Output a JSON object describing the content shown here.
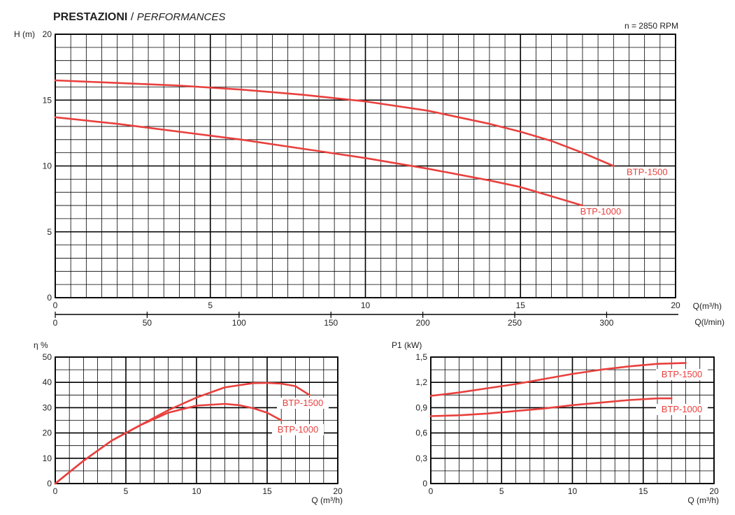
{
  "header": {
    "title_bold": "PRESTAZIONI",
    "title_separator": " / ",
    "title_italic": "PERFORMANCES",
    "speed": "n = 2850 RPM"
  },
  "colors": {
    "curve": "#e8403d",
    "grid": "#000000",
    "text": "#222222"
  },
  "chart_data": [
    {
      "id": "head",
      "type": "line",
      "title": "",
      "ylabel": "H (m)",
      "xlabel": "Q(m³/h)",
      "xlabel2": "Q(l/min)",
      "xlim": [
        0,
        20
      ],
      "ylim": [
        0,
        20
      ],
      "x_ticks": [
        0,
        5,
        10,
        15,
        20
      ],
      "y_ticks": [
        0,
        5,
        10,
        15,
        20
      ],
      "x2_lim": [
        0,
        337.5
      ],
      "x2_ticks": [
        0,
        50,
        100,
        150,
        200,
        250,
        300
      ],
      "grid": true,
      "series": [
        {
          "name": "BTP-1500",
          "x": [
            0,
            2,
            4,
            6,
            8,
            10,
            12,
            14,
            15,
            16,
            17,
            18
          ],
          "y": [
            16.5,
            16.3,
            16.1,
            15.8,
            15.4,
            14.9,
            14.2,
            13.2,
            12.6,
            11.9,
            11.0,
            10.0
          ]
        },
        {
          "name": "BTP-1000",
          "x": [
            0,
            2,
            4,
            6,
            8,
            10,
            12,
            14,
            15,
            16,
            17
          ],
          "y": [
            13.7,
            13.2,
            12.6,
            12.0,
            11.3,
            10.6,
            9.8,
            8.9,
            8.4,
            7.7,
            7.0
          ]
        }
      ]
    },
    {
      "id": "efficiency",
      "type": "line",
      "title": "",
      "ylabel": "η %",
      "xlabel": "Q (m³/h)",
      "xlim": [
        0,
        20
      ],
      "ylim": [
        0,
        50
      ],
      "x_ticks": [
        0,
        5,
        10,
        15,
        20
      ],
      "y_ticks": [
        0,
        10,
        20,
        30,
        40,
        50
      ],
      "grid": true,
      "series": [
        {
          "name": "BTP-1500",
          "x": [
            0,
            2,
            4,
            6,
            8,
            10,
            12,
            14,
            15,
            16,
            17,
            18
          ],
          "y": [
            0,
            9,
            17,
            23,
            29,
            34,
            38,
            39.7,
            39.8,
            39.5,
            38.5,
            35
          ]
        },
        {
          "name": "BTP-1000",
          "x": [
            0,
            2,
            4,
            6,
            8,
            10,
            12,
            13,
            14,
            15,
            16
          ],
          "y": [
            0,
            9,
            17,
            23,
            28,
            30.8,
            31.5,
            31,
            29.8,
            28,
            25
          ]
        }
      ]
    },
    {
      "id": "power",
      "type": "line",
      "title": "",
      "ylabel": "P1 (kW)",
      "xlabel": "Q (m³/h)",
      "xlim": [
        0,
        20
      ],
      "ylim": [
        0,
        1.5
      ],
      "x_ticks": [
        0,
        5,
        10,
        15,
        20
      ],
      "x_tick_labels": [
        "0",
        "5",
        "10",
        "15",
        "20"
      ],
      "y_ticks": [
        0,
        0.3,
        0.6,
        0.9,
        1.2,
        1.5
      ],
      "y_tick_labels": [
        "0",
        "0,3",
        "0,6",
        "0,9",
        "1,2",
        "1,5"
      ],
      "grid": true,
      "series": [
        {
          "name": "BTP-1500",
          "x": [
            0,
            2,
            4,
            6,
            8,
            10,
            12,
            14,
            16,
            18
          ],
          "y": [
            1.04,
            1.08,
            1.13,
            1.18,
            1.24,
            1.3,
            1.35,
            1.39,
            1.42,
            1.43
          ]
        },
        {
          "name": "BTP-1000",
          "x": [
            0,
            2,
            4,
            6,
            8,
            10,
            12,
            14,
            16,
            17
          ],
          "y": [
            0.8,
            0.81,
            0.83,
            0.86,
            0.89,
            0.93,
            0.96,
            0.99,
            1.01,
            1.01
          ]
        }
      ]
    }
  ]
}
